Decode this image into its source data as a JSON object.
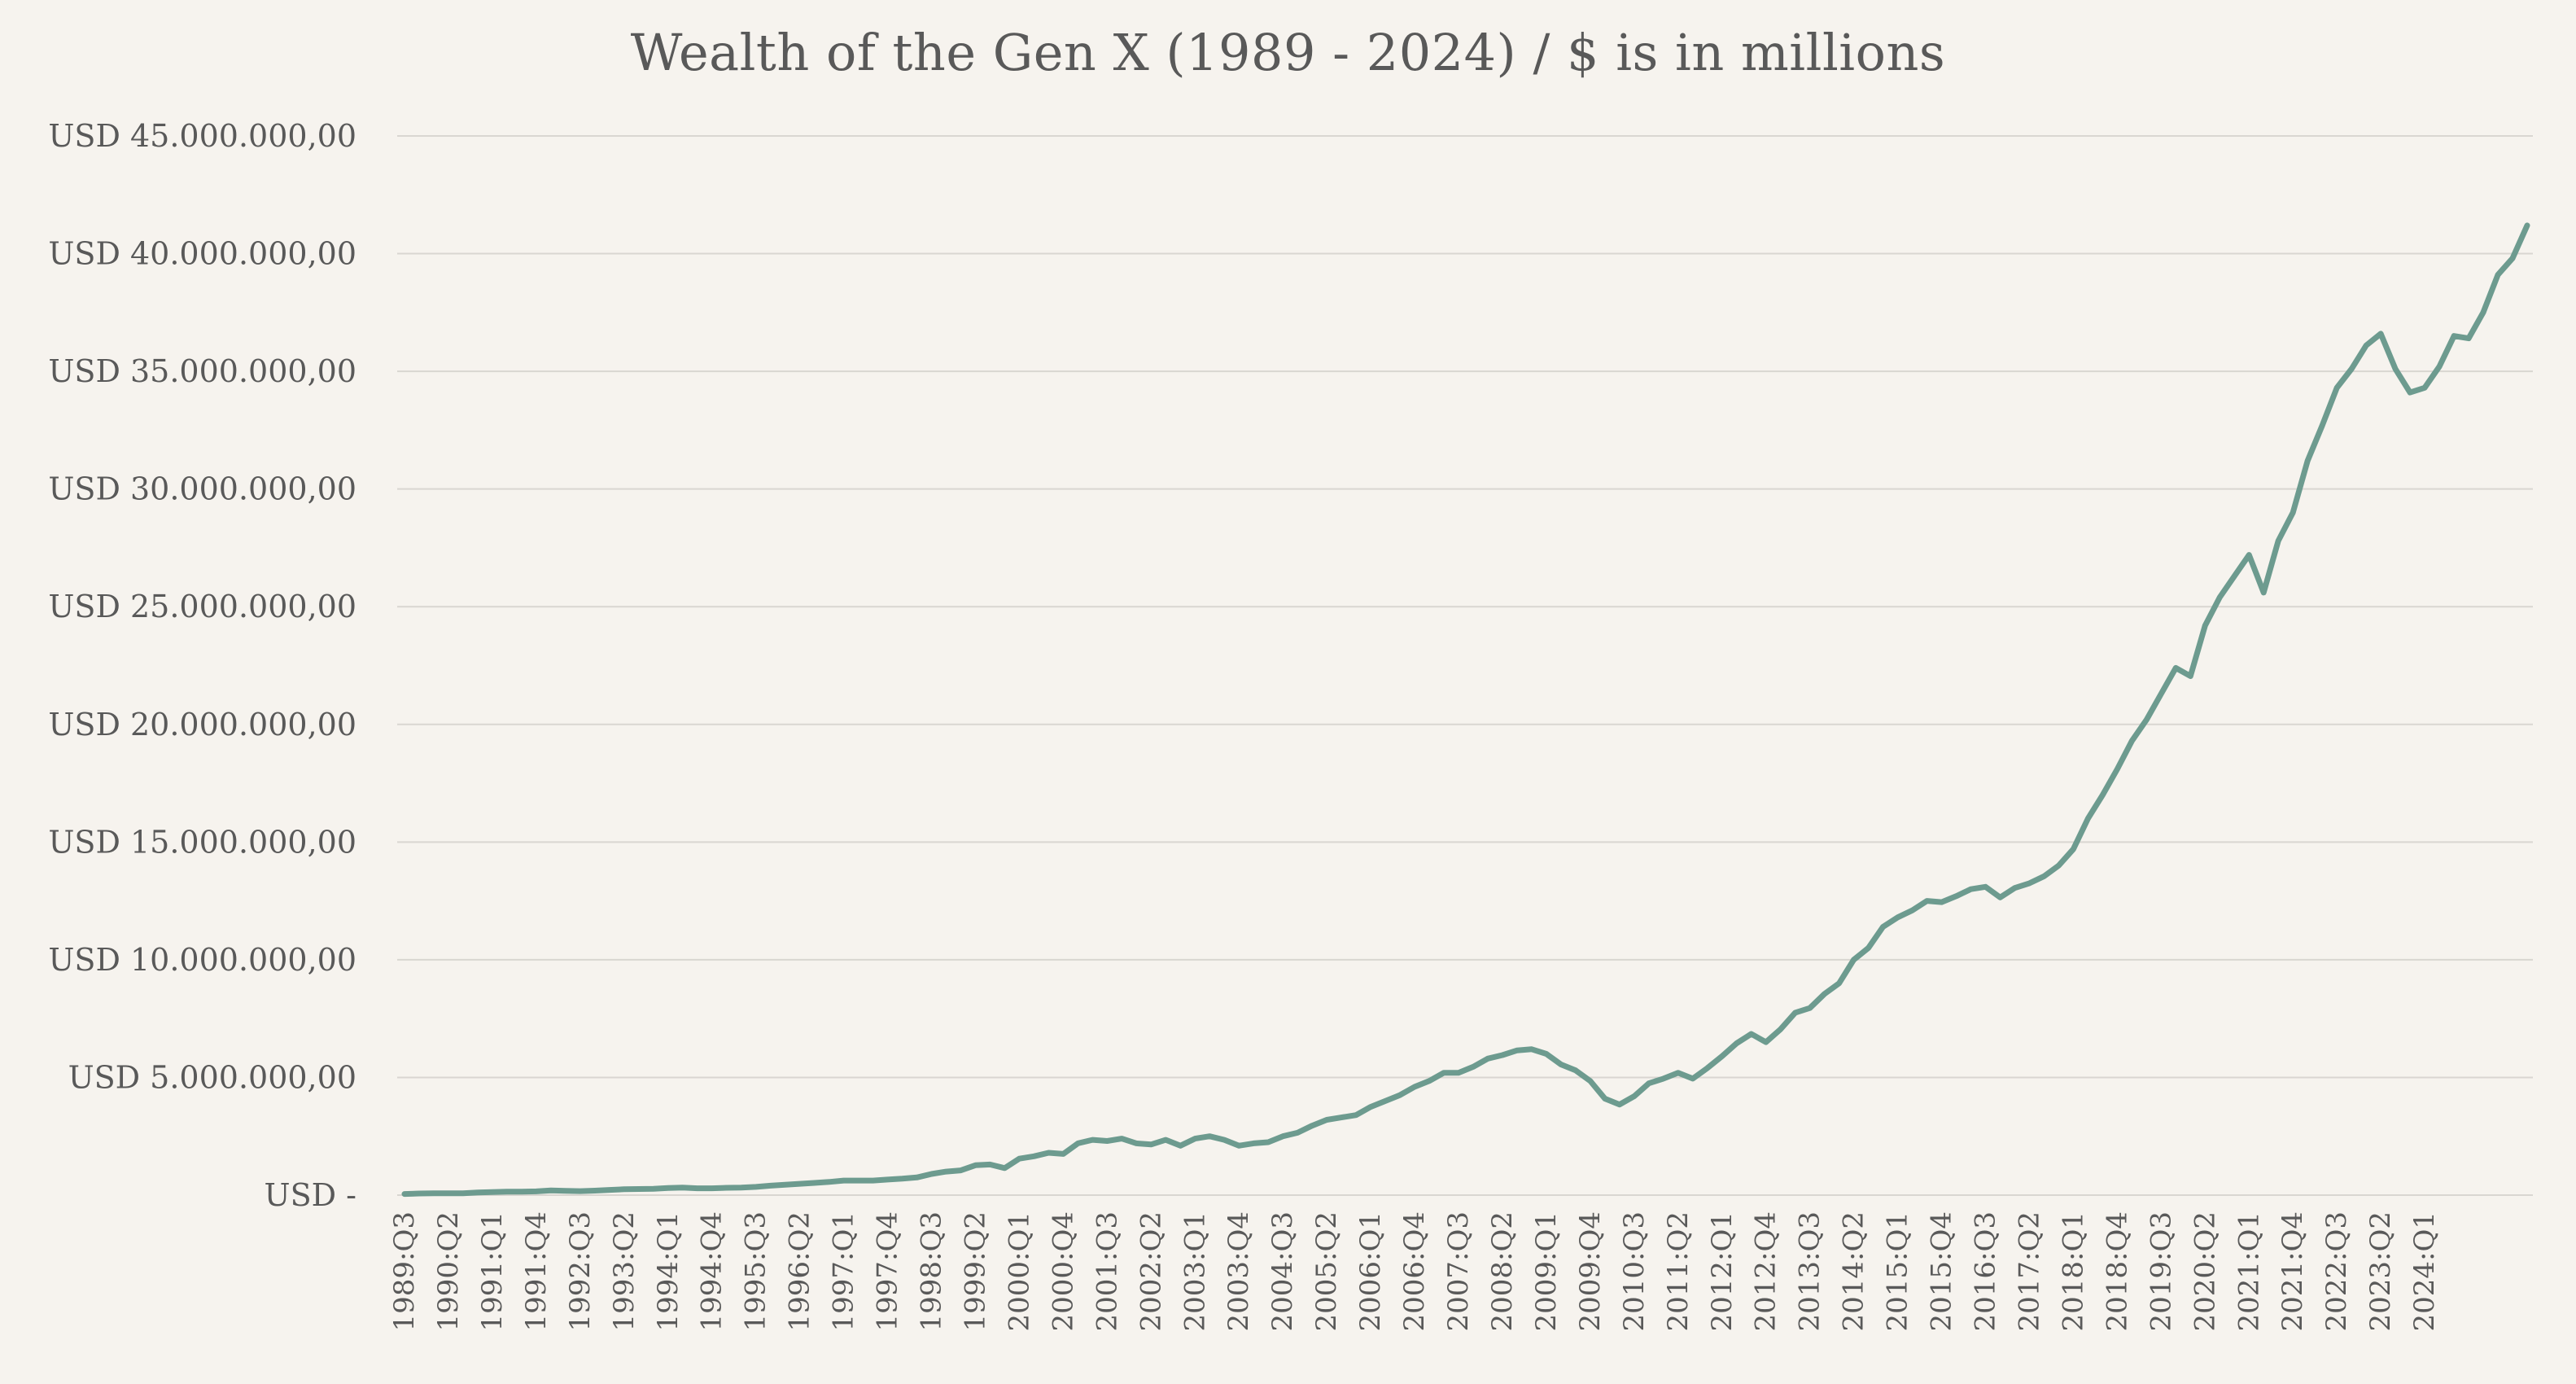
{
  "chart_data": {
    "type": "line",
    "title": "Wealth of the Gen X (1989 - 2024)  / $ is in millions",
    "xlabel": "",
    "ylabel": "",
    "ylim": [
      0,
      45000000
    ],
    "y_ticks": [
      0,
      5000000,
      10000000,
      15000000,
      20000000,
      25000000,
      30000000,
      35000000,
      40000000,
      45000000
    ],
    "y_tick_labels": [
      "USD -",
      "USD 5.000.000,00",
      "USD 10.000.000,00",
      "USD 15.000.000,00",
      "USD 20.000.000,00",
      "USD 25.000.000,00",
      "USD 30.000.000,00",
      "USD 35.000.000,00",
      "USD 40.000.000,00",
      "USD 45.000.000,00"
    ],
    "x_tick_labels": [
      "1989:Q3",
      "1990:Q2",
      "1991:Q1",
      "1991:Q4",
      "1992:Q3",
      "1993:Q2",
      "1994:Q1",
      "1994:Q4",
      "1995:Q3",
      "1996:Q2",
      "1997:Q1",
      "1997:Q4",
      "1998:Q3",
      "1999:Q2",
      "2000:Q1",
      "2000:Q4",
      "2001:Q3",
      "2002:Q2",
      "2003:Q1",
      "2003:Q4",
      "2004:Q3",
      "2005:Q2",
      "2006:Q1",
      "2006:Q4",
      "2007:Q3",
      "2008:Q2",
      "2009:Q1",
      "2009:Q4",
      "2010:Q3",
      "2011:Q2",
      "2012:Q1",
      "2012:Q4",
      "2013:Q3",
      "2014:Q2",
      "2015:Q1",
      "2015:Q4",
      "2016:Q3",
      "2017:Q2",
      "2018:Q1",
      "2018:Q4",
      "2019:Q3",
      "2020:Q2",
      "2021:Q1",
      "2021:Q4",
      "2022:Q3",
      "2023:Q2",
      "2024:Q1"
    ],
    "grid": true,
    "legend": "none",
    "line_color": "#6d9b8f",
    "series": [
      {
        "values": [
          50000,
          70000,
          80000,
          80000,
          80000,
          110000,
          130000,
          150000,
          150000,
          160000,
          200000,
          180000,
          170000,
          190000,
          220000,
          250000,
          260000,
          270000,
          300000,
          320000,
          290000,
          290000,
          310000,
          320000,
          350000,
          400000,
          440000,
          480000,
          520000,
          560000,
          620000,
          620000,
          620000,
          660000,
          700000,
          750000,
          900000,
          1000000,
          1050000,
          1270000,
          1300000,
          1150000,
          1550000,
          1650000,
          1800000,
          1750000,
          2200000,
          2350000,
          2300000,
          2400000,
          2200000,
          2150000,
          2350000,
          2100000,
          2400000,
          2500000,
          2350000,
          2100000,
          2200000,
          2250000,
          2500000,
          2650000,
          2950000,
          3200000,
          3300000,
          3400000,
          3750000,
          4000000,
          4250000,
          4600000,
          4850000,
          5200000,
          5200000,
          5450000,
          5800000,
          5950000,
          6150000,
          6200000,
          6000000,
          5550000,
          5300000,
          4850000,
          4100000,
          3850000,
          4200000,
          4750000,
          4950000,
          5200000,
          4950000,
          5400000,
          5900000,
          6450000,
          6850000,
          6500000,
          7050000,
          7750000,
          7950000,
          8550000,
          9000000,
          10000000,
          10500000,
          11400000,
          11800000,
          12100000,
          12500000,
          12450000,
          12700000,
          13000000,
          13100000,
          12650000,
          13050000,
          13250000,
          13550000,
          14000000,
          14700000,
          16000000,
          17000000,
          18100000,
          19300000,
          20200000,
          21300000,
          22400000,
          22050000,
          24200000,
          25400000,
          26300000,
          27200000,
          25600000,
          27800000,
          29000000,
          31200000,
          32700000,
          34300000,
          35100000,
          36100000,
          36600000,
          35100000,
          34100000,
          34300000,
          35200000,
          36500000,
          36400000,
          37500000,
          39100000,
          39800000,
          41200000
        ]
      }
    ]
  }
}
